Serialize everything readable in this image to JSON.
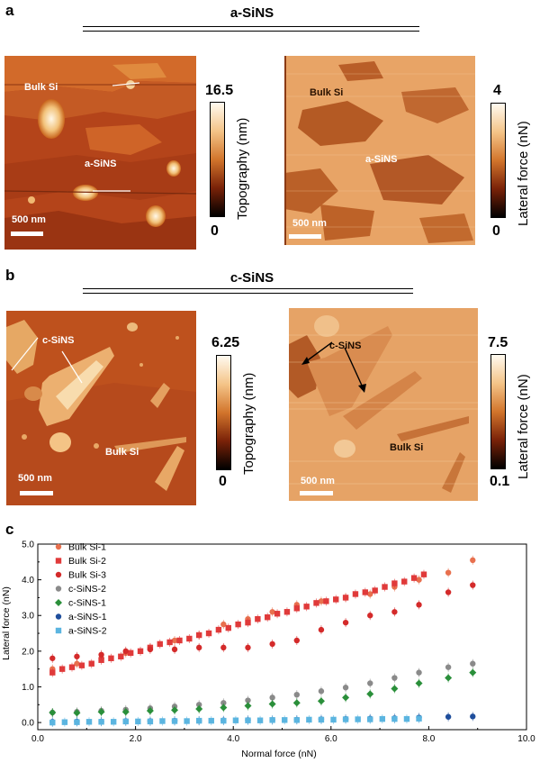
{
  "panel_a": {
    "letter": "a",
    "title": "a-SiNS",
    "topo": {
      "label_bulk": "Bulk Si",
      "label_sample": "a-SiNS",
      "scale": "500 nm",
      "cbar_max": "16.5",
      "cbar_min": "0",
      "cbar_axis": "Topography (nm)"
    },
    "lateral": {
      "label_bulk": "Bulk Si",
      "label_sample": "a-SiNS",
      "scale": "500 nm",
      "cbar_max": "4",
      "cbar_min": "0",
      "cbar_axis": "Lateral force (nN)"
    }
  },
  "panel_b": {
    "letter": "b",
    "title": "c-SiNS",
    "topo": {
      "label_bulk": "Bulk Si",
      "label_sample": "c-SiNS",
      "scale": "500 nm",
      "cbar_max": "6.25",
      "cbar_min": "0",
      "cbar_axis": "Topography (nm)"
    },
    "lateral": {
      "label_bulk": "Bulk Si",
      "label_sample": "c-SiNS",
      "scale": "500 nm",
      "cbar_max": "7.5",
      "cbar_min": "0.1",
      "cbar_axis": "Lateral force (nN)"
    }
  },
  "panel_c": {
    "letter": "c"
  },
  "chart_data": {
    "type": "scatter",
    "xlabel": "Normal force (nN)",
    "ylabel": "Lateral force (nN)",
    "xlim": [
      0,
      10
    ],
    "ylim": [
      -0.2,
      5.0
    ],
    "xticks": [
      "0.0",
      "2.0",
      "4.0",
      "6.0",
      "8.0",
      "10.0"
    ],
    "yticks": [
      "0.0",
      "1.0",
      "2.0",
      "3.0",
      "4.0",
      "5.0"
    ],
    "legend_position": "top-left",
    "grid": false,
    "series": [
      {
        "name": "Bulk Si-1",
        "color": "#e8704e",
        "marker": "circle",
        "x": [
          0.3,
          0.8,
          1.3,
          1.8,
          2.3,
          2.8,
          3.3,
          3.8,
          4.3,
          4.8,
          5.3,
          5.8,
          6.3,
          6.8,
          7.3,
          7.8,
          8.4,
          8.9
        ],
        "y": [
          1.5,
          1.65,
          1.8,
          1.95,
          2.1,
          2.3,
          2.45,
          2.75,
          2.9,
          3.1,
          3.3,
          3.4,
          3.5,
          3.6,
          3.8,
          4.0,
          4.2,
          4.55
        ]
      },
      {
        "name": "Bulk Si-2",
        "color": "#e03a3a",
        "marker": "square",
        "x": [
          0.3,
          0.5,
          0.7,
          0.9,
          1.1,
          1.3,
          1.5,
          1.7,
          1.9,
          2.1,
          2.3,
          2.5,
          2.7,
          2.9,
          3.1,
          3.3,
          3.5,
          3.7,
          3.9,
          4.1,
          4.3,
          4.5,
          4.7,
          4.9,
          5.1,
          5.3,
          5.5,
          5.7,
          5.9,
          6.1,
          6.3,
          6.5,
          6.7,
          6.9,
          7.1,
          7.3,
          7.5,
          7.7,
          7.9
        ],
        "y": [
          1.4,
          1.5,
          1.55,
          1.6,
          1.65,
          1.75,
          1.8,
          1.85,
          1.95,
          2.0,
          2.1,
          2.2,
          2.25,
          2.3,
          2.35,
          2.45,
          2.5,
          2.6,
          2.65,
          2.75,
          2.8,
          2.9,
          2.95,
          3.05,
          3.1,
          3.2,
          3.25,
          3.35,
          3.4,
          3.45,
          3.5,
          3.6,
          3.65,
          3.7,
          3.8,
          3.9,
          3.95,
          4.05,
          4.15
        ]
      },
      {
        "name": "Bulk Si-3",
        "color": "#d42a2a",
        "marker": "circle",
        "x": [
          0.3,
          0.8,
          1.3,
          1.8,
          2.3,
          2.8,
          3.3,
          3.8,
          4.3,
          4.8,
          5.3,
          5.8,
          6.3,
          6.8,
          7.3,
          7.8,
          8.4,
          8.9
        ],
        "y": [
          1.8,
          1.85,
          1.9,
          2.0,
          2.05,
          2.05,
          2.1,
          2.1,
          2.1,
          2.2,
          2.3,
          2.6,
          2.8,
          3.0,
          3.1,
          3.3,
          3.65,
          3.85
        ]
      },
      {
        "name": "c-SiNS-2",
        "color": "#8a8a8a",
        "marker": "circle",
        "x": [
          0.3,
          0.8,
          1.3,
          1.8,
          2.3,
          2.8,
          3.3,
          3.8,
          4.3,
          4.8,
          5.3,
          5.8,
          6.3,
          6.8,
          7.3,
          7.8,
          8.4,
          8.9
        ],
        "y": [
          0.28,
          0.3,
          0.33,
          0.36,
          0.4,
          0.45,
          0.5,
          0.55,
          0.62,
          0.7,
          0.78,
          0.88,
          0.98,
          1.1,
          1.25,
          1.4,
          1.55,
          1.65
        ]
      },
      {
        "name": "c-SiNS-1",
        "color": "#2a8f3a",
        "marker": "diamond",
        "x": [
          0.3,
          0.8,
          1.3,
          1.8,
          2.3,
          2.8,
          3.3,
          3.8,
          4.3,
          4.8,
          5.3,
          5.8,
          6.3,
          6.8,
          7.3,
          7.8,
          8.4,
          8.9
        ],
        "y": [
          0.28,
          0.27,
          0.3,
          0.3,
          0.33,
          0.35,
          0.38,
          0.42,
          0.47,
          0.52,
          0.55,
          0.6,
          0.7,
          0.8,
          0.95,
          1.1,
          1.25,
          1.4
        ]
      },
      {
        "name": "a-SiNS-1",
        "color": "#1f4e9c",
        "marker": "circle",
        "x": [
          0.3,
          0.8,
          1.3,
          1.8,
          2.3,
          2.8,
          3.3,
          3.8,
          4.3,
          4.8,
          5.3,
          5.8,
          6.3,
          6.8,
          7.3,
          7.8,
          8.4,
          8.9
        ],
        "y": [
          0.02,
          0.03,
          0.03,
          0.04,
          0.04,
          0.05,
          0.05,
          0.06,
          0.07,
          0.07,
          0.08,
          0.09,
          0.1,
          0.11,
          0.12,
          0.14,
          0.16,
          0.17
        ]
      },
      {
        "name": "a-SiNS-2",
        "color": "#5bb5e0",
        "marker": "square",
        "x": [
          0.3,
          0.55,
          0.8,
          1.05,
          1.3,
          1.55,
          1.8,
          2.05,
          2.3,
          2.55,
          2.8,
          3.05,
          3.3,
          3.55,
          3.8,
          4.05,
          4.3,
          4.55,
          4.8,
          5.05,
          5.3,
          5.55,
          5.8,
          6.05,
          6.3,
          6.55,
          6.8,
          7.05,
          7.3,
          7.55,
          7.8
        ],
        "y": [
          0.0,
          0.01,
          0.01,
          0.02,
          0.02,
          0.02,
          0.03,
          0.03,
          0.03,
          0.04,
          0.04,
          0.04,
          0.05,
          0.05,
          0.05,
          0.06,
          0.06,
          0.06,
          0.07,
          0.07,
          0.07,
          0.08,
          0.08,
          0.08,
          0.09,
          0.09,
          0.09,
          0.1,
          0.1,
          0.1,
          0.11
        ]
      }
    ]
  }
}
